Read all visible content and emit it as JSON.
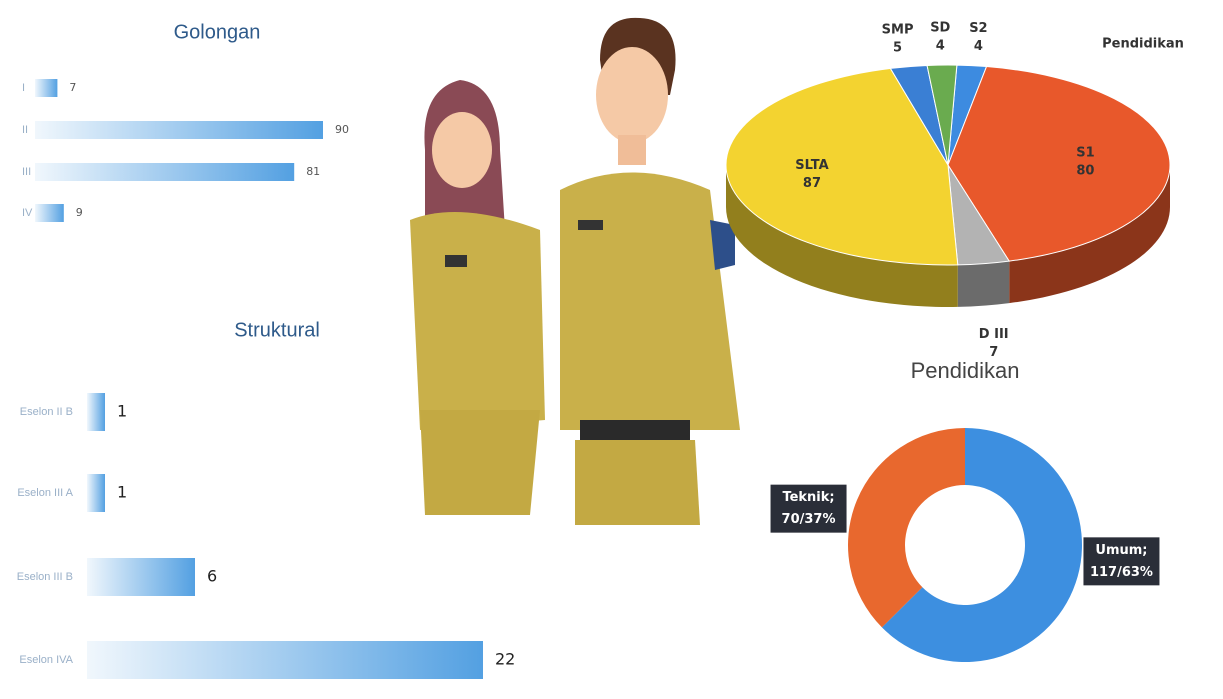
{
  "chart_data": [
    {
      "type": "hbar",
      "title": "Golongan",
      "categories": [
        "I",
        "II",
        "III",
        "IV"
      ],
      "values": [
        7,
        90,
        81,
        9
      ],
      "color": "#4a9be0"
    },
    {
      "type": "hbar",
      "title": "Struktural",
      "categories": [
        "Eselon II B",
        "Eselon III A",
        "Eselon III B",
        "Eselon IVA"
      ],
      "values": [
        1,
        1,
        6,
        22
      ],
      "color": "#4a9be0"
    },
    {
      "type": "pie3d",
      "title": "Pendidikan",
      "categories": [
        "S2",
        "S1",
        "D III",
        "SLTA",
        "SMP",
        "SD"
      ],
      "values": [
        4,
        80,
        7,
        87,
        5,
        4
      ],
      "colors": [
        "#3d8be0",
        "#e8582b",
        "#b3b3b3",
        "#f3d330",
        "#3a7fd4",
        "#6aab4f"
      ]
    },
    {
      "type": "donut",
      "title": "Pendidikan",
      "categories": [
        "Umum;",
        "Teknik;"
      ],
      "values": [
        117,
        70
      ],
      "value_labels": [
        "117/63%",
        "70/37%"
      ],
      "colors": [
        "#3d8fe0",
        "#e8682e"
      ]
    }
  ]
}
